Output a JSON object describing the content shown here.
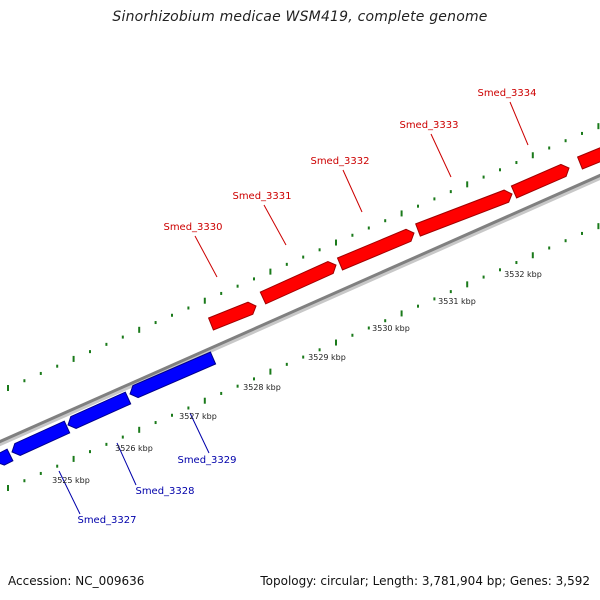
{
  "title": "Sinorhizobium medicae WSM419, complete genome",
  "footer": {
    "accession": "Accession: NC_009636",
    "topology": "Topology: circular; Length: 3,781,904 bp; Genes: 3,592"
  },
  "colors": {
    "forward_gene": "#ff0000",
    "reverse_gene": "#0000ff",
    "backbone": "#808080",
    "tick": "#1a7a1a",
    "forward_label": "#cc0000",
    "reverse_label": "#0000aa"
  },
  "forward_genes": [
    {
      "name": "Smed_3330"
    },
    {
      "name": "Smed_3331"
    },
    {
      "name": "Smed_3332"
    },
    {
      "name": "Smed_3333"
    },
    {
      "name": "Smed_3334"
    }
  ],
  "reverse_genes": [
    {
      "name": "Smed_3327"
    },
    {
      "name": "Smed_3328"
    },
    {
      "name": "Smed_3329"
    }
  ],
  "scale_labels": [
    "3525 kbp",
    "3526 kbp",
    "3527 kbp",
    "3528 kbp",
    "3529 kbp",
    "3530 kbp",
    "3531 kbp",
    "3532 kbp"
  ]
}
